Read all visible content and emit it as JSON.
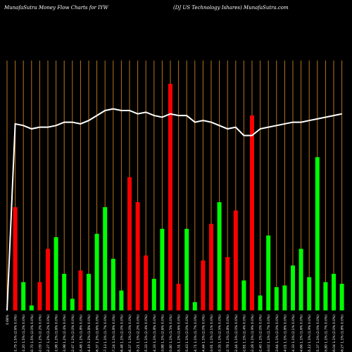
{
  "header": {
    "left": "MunafaSutra  Money Flow  Charts for IYW",
    "right": "(DJ US Technology Ishares) MunafaSutra.com"
  },
  "colors": {
    "background": "#000000",
    "up": "#00ff00",
    "down": "#ff0000",
    "price_line": "#ffffff",
    "vertical_grid": "#b8731a"
  },
  "chart_data": {
    "type": "bar",
    "title": "MunafaSutra  Money Flow  Charts for IYW",
    "subtitle": "(DJ US Technology Ishares) MunafaSutra.com",
    "grid": true,
    "categories": [
      "0.68%",
      "151.79 1.5% (2.6% 0.0%)",
      "151.20 1.5% (1.2% 0.0%)",
      "150.70 1.5% (2.0% 0.0%)",
      "152.09 1.2% (2.2% 0.0%)",
      "152.27 1.2% (3.2% 0.0%)",
      "151.98 1.2% (1.6% 0.0%)",
      "151.98 1.2% (2.4% 0.0%)",
      "152.47 1.2% (2.0% 0.0%)",
      "153.48 1.2% (1.8% 0.0%)",
      "154.19 1.2% (1.8% 0.0%)",
      "156.37 1.2% (1.6% 0.0%)",
      "157.13 1.1% (1.7% 0.0%)",
      "157.24 1.1% (1.8% 0.0%)",
      "156.48 1.1% (2.0% 0.0%)",
      "156.37 1.1% (2.0% 0.0%)",
      "155.21 1.1% (2.2% 0.0%)",
      "155.33 1.1% (2.4% 0.0%)",
      "154.33 1.1% (1.8% 0.0%)",
      "153.88 1.1% (2.6% 0.0%)",
      "155.80 1.1% (1.5% 0.0%)",
      "155.31 1.1% (1.6% 0.0%)",
      "155.43 1.1% (2.0% 0.0%)",
      "154.71 1.1% (1.7% 0.0%)",
      "154.44 1.1% (2.0% 0.0%)",
      "153.91 1.1% (2.1% 0.0%)",
      "153.35 1.1% (2.5% 0.0%)",
      "152.78 1.1% (1.8% 0.0%)",
      "152.44 1.1% (2.0% 0.0%)",
      "152.81 1.1% (2.4% 0.0%)",
      "152.28 1.1% (1.9% 0.0%)",
      "152.40 1.1% (2.0% 0.0%)",
      "153.02 1.1% (1.7% 0.0%)",
      "153.64 1.1% (2.0% 0.0%)",
      "154.01 1.1% (1.8% 0.0%)",
      "154.33 1.1% (2.1% 0.0%)",
      "154.66 1.1% (1.6% 0.0%)",
      "155.12 1.1% (1.9% 0.0%)",
      "155.37 1.1% (2.0% 0.0%)",
      "155.80 1.1% (1.7% 0.0%)",
      "156.04 1.1% (2.0% 0.0%)",
      "156.27 1.1% (1.8% 0.0%)"
    ],
    "values": [
      0,
      62,
      17,
      3,
      17,
      37,
      44,
      22,
      7,
      24,
      22,
      46,
      62,
      31,
      12,
      80,
      65,
      33,
      19,
      49,
      136,
      16,
      49,
      5,
      30,
      52,
      65,
      32,
      60,
      18,
      117,
      9,
      45,
      14,
      15,
      27,
      37,
      20,
      92,
      17,
      22,
      16
    ],
    "directions": [
      "none",
      "down",
      "up",
      "up",
      "down",
      "down",
      "up",
      "up",
      "up",
      "down",
      "up",
      "up",
      "up",
      "up",
      "up",
      "down",
      "down",
      "down",
      "up",
      "up",
      "down",
      "down",
      "up",
      "up",
      "down",
      "down",
      "up",
      "down",
      "down",
      "up",
      "down",
      "up",
      "up",
      "up",
      "up",
      "up",
      "up",
      "up",
      "up",
      "up",
      "up",
      "up"
    ],
    "price_line": [
      0,
      112,
      111,
      109,
      110,
      110,
      111,
      113,
      113,
      112,
      114,
      117,
      120,
      121,
      120,
      120,
      118,
      119,
      117,
      116,
      118,
      117,
      117,
      113,
      114,
      113,
      111,
      109,
      110,
      105,
      105,
      109,
      110,
      111,
      112,
      113,
      113,
      114,
      115,
      116,
      117,
      118
    ],
    "ylim": [
      0,
      150
    ]
  }
}
